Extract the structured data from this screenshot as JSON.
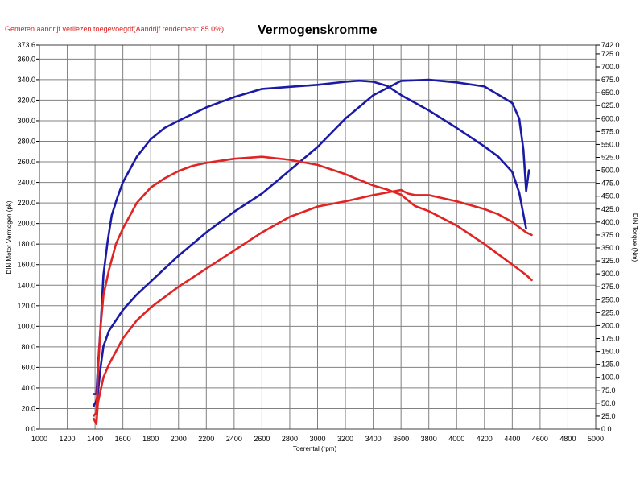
{
  "header": {
    "note": "Gemeten aandrijf verliezen toegevoegdf(Aandrijf rendement: 85.0%)",
    "title": "Vermogenskromme"
  },
  "colors": {
    "blue": "#1a1aa6",
    "red": "#e02424",
    "grid": "#808080",
    "note": "#e02020"
  },
  "chart_data": {
    "type": "line",
    "title": "Vermogenskromme",
    "xlabel": "Toerental (rpm)",
    "ylabel_left": "DIN Motor Vermogen (pk)",
    "ylabel_right": "DIN Torque (Nm)",
    "xlim": [
      1000,
      5000
    ],
    "ylim_left": [
      0,
      373.6
    ],
    "ylim_right": [
      0,
      742
    ],
    "x_ticks": [
      1000,
      1200,
      1400,
      1600,
      1800,
      2000,
      2200,
      2400,
      2600,
      2800,
      3000,
      3200,
      3400,
      3600,
      3800,
      4000,
      4200,
      4400,
      4600,
      4800,
      5000
    ],
    "y_left_ticks": [
      "0.0",
      "20.0",
      "40.0",
      "60.0",
      "80.0",
      "100.0",
      "120.0",
      "140.0",
      "160.0",
      "180.0",
      "200.0",
      "220.0",
      "240.0",
      "260.0",
      "280.0",
      "300.0",
      "320.0",
      "340.0",
      "360.0",
      "373.6"
    ],
    "y_right_ticks": [
      "0.0",
      "25.0",
      "50.0",
      "75.0",
      "100.0",
      "125.0",
      "150.0",
      "175.0",
      "200.0",
      "225.0",
      "250.0",
      "275.0",
      "300.0",
      "325.0",
      "350.0",
      "375.0",
      "400.0",
      "425.0",
      "450.0",
      "475.0",
      "500.0",
      "525.0",
      "550.0",
      "575.0",
      "600.0",
      "625.0",
      "650.0",
      "675.0",
      "700.0",
      "725.0",
      "742.0"
    ],
    "grid": true,
    "series": [
      {
        "color": "blue",
        "axis": "left",
        "kind": "power",
        "x": [
          1390,
          1410,
          1420,
          1440,
          1460,
          1490,
          1520,
          1560,
          1600,
          1700,
          1800,
          1900,
          2000,
          2200,
          2400,
          2600,
          2800,
          3000,
          3200,
          3300,
          3400,
          3500,
          3600,
          3800,
          4000,
          4200,
          4300,
          4400,
          4450,
          4500
        ],
        "values": [
          34,
          34,
          60,
          100,
          150,
          182,
          208,
          225,
          240,
          265,
          282,
          293,
          300,
          313,
          323,
          331,
          333,
          335,
          338,
          339,
          338,
          334,
          325,
          310,
          293,
          275,
          265,
          250,
          230,
          195
        ]
      },
      {
        "color": "blue",
        "axis": "right",
        "kind": "torque",
        "x": [
          1390,
          1410,
          1420,
          1440,
          1460,
          1500,
          1550,
          1600,
          1700,
          1800,
          2000,
          2200,
          2400,
          2600,
          2800,
          3000,
          3200,
          3400,
          3600,
          3800,
          4000,
          4200,
          4400,
          4450,
          4480,
          4500,
          4520
        ],
        "values": [
          45,
          55,
          70,
          120,
          160,
          190,
          210,
          230,
          260,
          285,
          335,
          380,
          420,
          455,
          500,
          545,
          600,
          645,
          673,
          675,
          670,
          662,
          630,
          600,
          540,
          460,
          500
        ]
      },
      {
        "color": "red",
        "axis": "left",
        "kind": "power",
        "x": [
          1390,
          1410,
          1420,
          1440,
          1460,
          1500,
          1550,
          1600,
          1700,
          1800,
          1900,
          2000,
          2100,
          2200,
          2400,
          2600,
          2800,
          3000,
          3200,
          3400,
          3500,
          3600,
          3700,
          3800,
          4000,
          4200,
          4400,
          4500,
          4540
        ],
        "values": [
          13,
          16,
          55,
          100,
          130,
          155,
          180,
          195,
          220,
          235,
          244,
          251,
          256,
          259,
          263,
          265,
          262,
          257,
          248,
          237,
          233,
          228,
          217,
          212,
          198,
          180,
          160,
          150,
          145
        ]
      },
      {
        "color": "red",
        "axis": "right",
        "kind": "torque",
        "x": [
          1390,
          1410,
          1420,
          1440,
          1460,
          1500,
          1550,
          1600,
          1700,
          1800,
          2000,
          2200,
          2400,
          2600,
          2800,
          3000,
          3200,
          3400,
          3600,
          3650,
          3700,
          3800,
          4000,
          4200,
          4300,
          4400,
          4500,
          4540
        ],
        "values": [
          20,
          10,
          50,
          75,
          100,
          125,
          150,
          175,
          210,
          235,
          275,
          310,
          345,
          380,
          410,
          430,
          440,
          452,
          462,
          455,
          452,
          452,
          440,
          425,
          415,
          400,
          380,
          375
        ]
      }
    ]
  }
}
